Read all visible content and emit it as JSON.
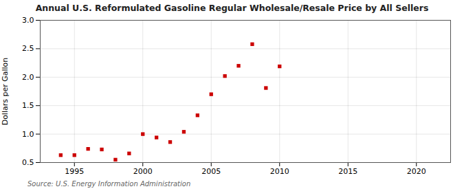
{
  "chart_data": {
    "type": "scatter",
    "title": "Annual U.S. Reformulated Gasoline Regular Wholesale/Resale Price by All Sellers",
    "ylabel": "Dollars per Gallon",
    "annotations": [
      "Source: U.S. Energy Information Administration"
    ],
    "x": [
      1994,
      1995,
      1996,
      1997,
      1998,
      1999,
      2000,
      2001,
      2002,
      2003,
      2004,
      2005,
      2006,
      2007,
      2008,
      2009,
      2010
    ],
    "values": [
      0.63,
      0.63,
      0.74,
      0.73,
      0.55,
      0.66,
      1.0,
      0.94,
      0.86,
      1.04,
      1.33,
      1.7,
      2.02,
      2.2,
      2.58,
      1.81,
      2.19
    ],
    "color": "#cc0000",
    "marker": "square",
    "xlim": [
      1992.5,
      2022.5
    ],
    "ylim": [
      0.5,
      3.0
    ],
    "xticks": [
      1995,
      2000,
      2005,
      2010,
      2015,
      2020
    ],
    "yticks": [
      0.5,
      {
        "value": 1.0,
        "label": "1.0"
      },
      1.5,
      {
        "value": 2.0,
        "label": "2.0"
      },
      2.5,
      {
        "value": 3.0,
        "label": "3.0"
      }
    ],
    "grid": true
  }
}
